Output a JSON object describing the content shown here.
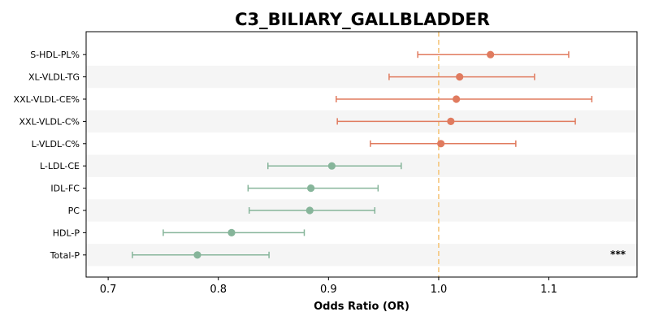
{
  "chart_data": {
    "type": "forest",
    "title": "C3_BILIARY_GALLBLADDER",
    "xlabel": "Odds Ratio (OR)",
    "xlim": [
      0.68,
      1.18
    ],
    "xticks": [
      0.7,
      0.8,
      0.9,
      1.0,
      1.1
    ],
    "xtick_labels": [
      "0.7",
      "0.8",
      "0.9",
      "1.0",
      "1.1"
    ],
    "reference_line": 1.0,
    "colors": {
      "positive": "#e07b5f",
      "negative": "#86b59a",
      "reference": "#f5c77e",
      "band": "#f5f5f5"
    },
    "rows": [
      {
        "label": "S-HDL-PL%",
        "or": 1.047,
        "lo": 0.981,
        "hi": 1.118,
        "sig": ""
      },
      {
        "label": "XL-VLDL-TG",
        "or": 1.019,
        "lo": 0.955,
        "hi": 1.087,
        "sig": ""
      },
      {
        "label": "XXL-VLDL-CE%",
        "or": 1.016,
        "lo": 0.907,
        "hi": 1.139,
        "sig": ""
      },
      {
        "label": "XXL-VLDL-C%",
        "or": 1.011,
        "lo": 0.908,
        "hi": 1.124,
        "sig": ""
      },
      {
        "label": "L-VLDL-C%",
        "or": 1.002,
        "lo": 0.938,
        "hi": 1.07,
        "sig": ""
      },
      {
        "label": "L-LDL-CE",
        "or": 0.903,
        "lo": 0.845,
        "hi": 0.966,
        "sig": ""
      },
      {
        "label": "IDL-FC",
        "or": 0.884,
        "lo": 0.827,
        "hi": 0.945,
        "sig": ""
      },
      {
        "label": "PC",
        "or": 0.883,
        "lo": 0.828,
        "hi": 0.942,
        "sig": ""
      },
      {
        "label": "HDL-P",
        "or": 0.812,
        "lo": 0.75,
        "hi": 0.878,
        "sig": ""
      },
      {
        "label": "Total-P",
        "or": 0.781,
        "lo": 0.722,
        "hi": 0.846,
        "sig": "***"
      }
    ]
  }
}
